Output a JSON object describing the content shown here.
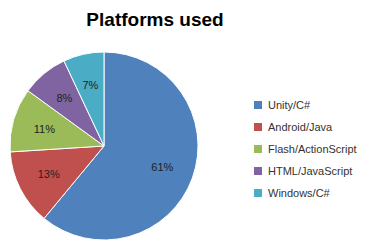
{
  "chart_data": {
    "type": "pie",
    "title": "Platforms used",
    "categories": [
      "Unity/C#",
      "Android/Java",
      "Flash/ActionScript",
      "HTML/JavaScript",
      "Windows/C#"
    ],
    "values": [
      61,
      13,
      11,
      8,
      7
    ],
    "value_labels": [
      "61%",
      "13%",
      "11%",
      "8%",
      "7%"
    ],
    "colors": [
      "#4f81bd",
      "#c0504d",
      "#9bbb59",
      "#8064a2",
      "#4bacc6"
    ],
    "data_labels": true,
    "legend": "right"
  }
}
